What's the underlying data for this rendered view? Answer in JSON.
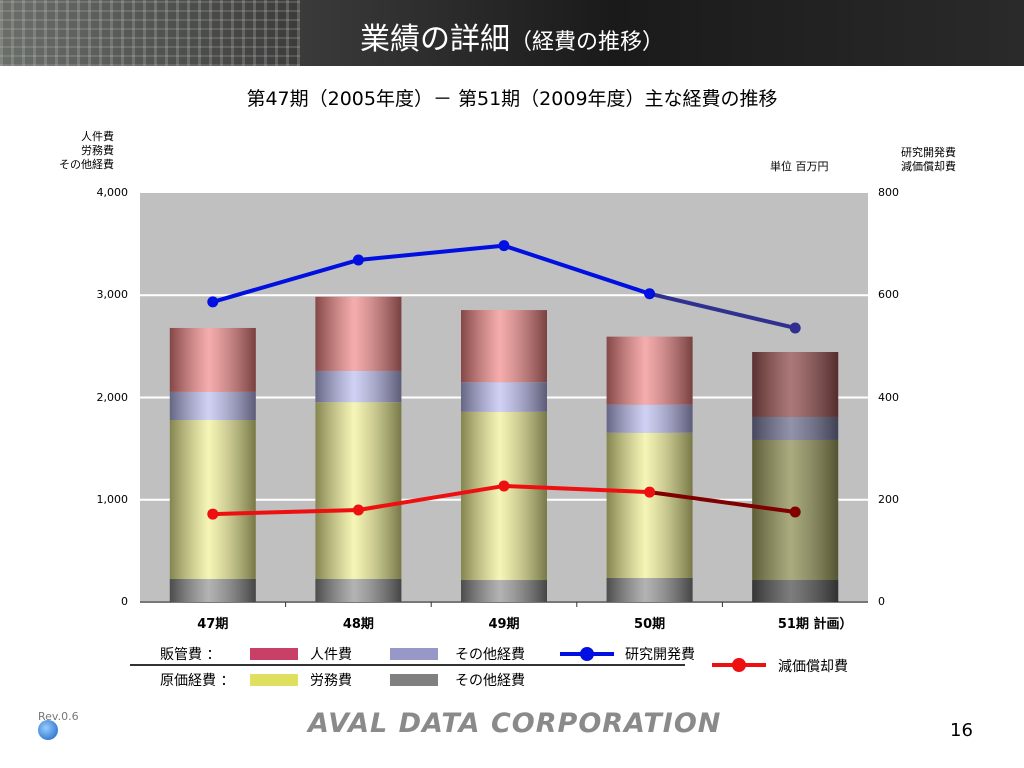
{
  "header": {
    "title": "業績の詳細",
    "title_paren": "（経費の推移）"
  },
  "subtitle": "第47期（2005年度）－ 第51期（2009年度）主な経費の推移",
  "left_axis_labels": [
    "人件費",
    "労務費",
    "その他経費"
  ],
  "right_axis_labels": [
    "研究開発費",
    "減価償却費"
  ],
  "unit": "単位 百万円",
  "chart_data": {
    "type": "bar",
    "categories": [
      "47期",
      "48期",
      "49期",
      "50期",
      "51期 計画）"
    ],
    "left_ticks": [
      "0",
      "1,000",
      "2,000",
      "3,000",
      "4,000"
    ],
    "right_ticks": [
      "0",
      "200",
      "400",
      "600",
      "800"
    ],
    "ylim": [
      0,
      4000
    ],
    "y2lim": [
      0,
      800
    ],
    "grid": true,
    "stacked_series": [
      {
        "name": "原価経費 その他経費",
        "color": "#8a8a8a",
        "values": [
          225,
          225,
          215,
          235,
          215
        ]
      },
      {
        "name": "労務費",
        "color": "#f0f090",
        "values": [
          1555,
          1730,
          1645,
          1420,
          1370
        ]
      },
      {
        "name": "販管費 その他経費",
        "color": "#b8b8f0",
        "values": [
          275,
          305,
          290,
          275,
          225
        ]
      },
      {
        "name": "人件費",
        "color": "#f08080",
        "values": [
          625,
          725,
          705,
          665,
          635
        ]
      }
    ],
    "line_series": [
      {
        "name": "研究開発費",
        "color": "#0010e0",
        "axis": "right",
        "values": [
          587,
          669,
          697,
          603,
          536
        ]
      },
      {
        "name": "減価償却費",
        "color": "#ee1010",
        "axis": "right",
        "values": [
          172,
          180,
          227,
          215,
          176
        ]
      }
    ]
  },
  "legend": {
    "sga": "販管費 ：",
    "cost": "原価経費 ：",
    "personnel": "人件費",
    "sga_other": "その他経費",
    "rnd": "研究開発費",
    "labor": "労務費",
    "cost_other": "その他経費",
    "depreciation": "減価償却費"
  },
  "footer": {
    "rev": "Rev.0.6",
    "logo": "AVAL DATA CORPORATION",
    "page": "16"
  }
}
